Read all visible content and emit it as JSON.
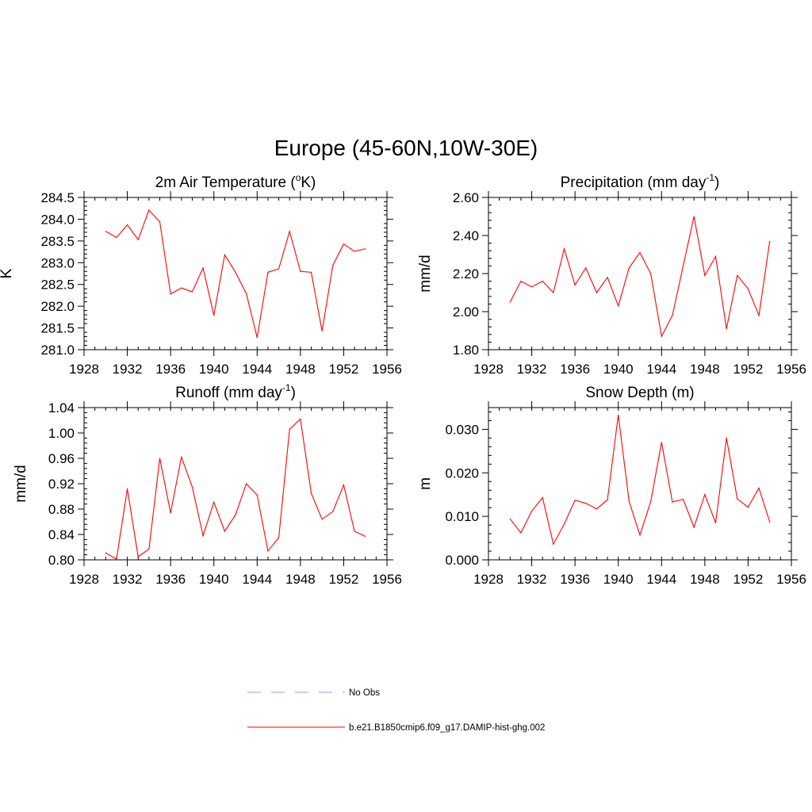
{
  "figure": {
    "title": "Europe (45-60N,10W-30E)"
  },
  "chart_data": [
    {
      "type": "line",
      "title": "2m Air Temperature (",
      "title_sup": "o",
      "title_after": "K)",
      "xlabel": "",
      "ylabel": "K",
      "xlim": [
        1928,
        1956
      ],
      "ylim": [
        281.0,
        284.5
      ],
      "xticks": [
        1928,
        1932,
        1936,
        1940,
        1944,
        1948,
        1952,
        1956
      ],
      "yticks": [
        281.0,
        281.5,
        282.0,
        282.5,
        283.0,
        283.5,
        284.0,
        284.5
      ],
      "ytick_decimals": 1,
      "x": [
        1930,
        1931,
        1932,
        1933,
        1934,
        1935,
        1936,
        1937,
        1938,
        1939,
        1940,
        1941,
        1942,
        1943,
        1944,
        1945,
        1946,
        1947,
        1948,
        1949,
        1950,
        1951,
        1952,
        1953,
        1954
      ],
      "series": [
        {
          "name": "b.e21.B1850cmip6.f09_g17.DAMIP-hist-ghg.002",
          "values": [
            283.72,
            283.58,
            283.87,
            283.53,
            284.21,
            283.94,
            282.28,
            282.42,
            282.33,
            282.88,
            281.79,
            283.18,
            282.78,
            282.29,
            281.28,
            282.78,
            282.86,
            283.72,
            282.8,
            282.78,
            281.43,
            282.94,
            283.43,
            283.26,
            283.32
          ]
        }
      ]
    },
    {
      "type": "line",
      "title": "Precipitation (mm day",
      "title_sup": "-1",
      "title_after": ")",
      "xlabel": "",
      "ylabel": "mm/d",
      "xlim": [
        1928,
        1956
      ],
      "ylim": [
        1.8,
        2.6
      ],
      "xticks": [
        1928,
        1932,
        1936,
        1940,
        1944,
        1948,
        1952,
        1956
      ],
      "yticks": [
        1.8,
        2.0,
        2.2,
        2.4,
        2.6
      ],
      "ytick_decimals": 2,
      "x": [
        1930,
        1931,
        1932,
        1933,
        1934,
        1935,
        1936,
        1937,
        1938,
        1939,
        1940,
        1941,
        1942,
        1943,
        1944,
        1945,
        1946,
        1947,
        1948,
        1949,
        1950,
        1951,
        1952,
        1953,
        1954
      ],
      "series": [
        {
          "name": "b.e21.B1850cmip6.f09_g17.DAMIP-hist-ghg.002",
          "values": [
            2.05,
            2.16,
            2.13,
            2.16,
            2.1,
            2.33,
            2.14,
            2.23,
            2.1,
            2.18,
            2.03,
            2.23,
            2.31,
            2.2,
            1.87,
            1.98,
            2.24,
            2.5,
            2.19,
            2.29,
            1.91,
            2.19,
            2.12,
            1.98,
            2.37
          ]
        }
      ]
    },
    {
      "type": "line",
      "title": "Runoff (mm day",
      "title_sup": "-1",
      "title_after": ")",
      "xlabel": "",
      "ylabel": "mm/d",
      "xlim": [
        1928,
        1956
      ],
      "ylim": [
        0.8,
        1.04
      ],
      "xticks": [
        1928,
        1932,
        1936,
        1940,
        1944,
        1948,
        1952,
        1956
      ],
      "yticks": [
        0.8,
        0.84,
        0.88,
        0.92,
        0.96,
        1.0,
        1.04
      ],
      "ytick_decimals": 2,
      "x": [
        1930,
        1931,
        1932,
        1933,
        1934,
        1935,
        1936,
        1937,
        1938,
        1939,
        1940,
        1941,
        1942,
        1943,
        1944,
        1945,
        1946,
        1947,
        1948,
        1949,
        1950,
        1951,
        1952,
        1953,
        1954
      ],
      "series": [
        {
          "name": "b.e21.B1850cmip6.f09_g17.DAMIP-hist-ghg.002",
          "values": [
            0.811,
            0.801,
            0.912,
            0.805,
            0.817,
            0.96,
            0.874,
            0.962,
            0.915,
            0.838,
            0.891,
            0.845,
            0.871,
            0.92,
            0.902,
            0.814,
            0.835,
            1.006,
            1.022,
            0.905,
            0.864,
            0.876,
            0.918,
            0.845,
            0.837
          ]
        }
      ]
    },
    {
      "type": "line",
      "title": "Snow Depth (m)",
      "title_sup": "",
      "title_after": "",
      "xlabel": "",
      "ylabel": "m",
      "xlim": [
        1928,
        1956
      ],
      "ylim": [
        0.0,
        0.035
      ],
      "xticks": [
        1928,
        1932,
        1936,
        1940,
        1944,
        1948,
        1952,
        1956
      ],
      "yticks": [
        0.0,
        0.01,
        0.02,
        0.03
      ],
      "ytick_decimals": 3,
      "x": [
        1930,
        1931,
        1932,
        1933,
        1934,
        1935,
        1936,
        1937,
        1938,
        1939,
        1940,
        1941,
        1942,
        1943,
        1944,
        1945,
        1946,
        1947,
        1948,
        1949,
        1950,
        1951,
        1952,
        1953,
        1954
      ],
      "series": [
        {
          "name": "b.e21.B1850cmip6.f09_g17.DAMIP-hist-ghg.002",
          "values": [
            0.0094,
            0.0062,
            0.0112,
            0.0143,
            0.0036,
            0.0082,
            0.0137,
            0.013,
            0.0117,
            0.0138,
            0.0333,
            0.0134,
            0.0057,
            0.0134,
            0.027,
            0.0133,
            0.0139,
            0.0075,
            0.015,
            0.0085,
            0.028,
            0.014,
            0.0121,
            0.0165,
            0.0087
          ]
        }
      ]
    }
  ],
  "legend": {
    "items": [
      {
        "label": "No Obs",
        "color": "#9999ff",
        "style": "dashed"
      },
      {
        "label": "b.e21.B1850cmip6.f09_g17.DAMIP-hist-ghg.002",
        "color": "#ff0000",
        "style": "solid"
      }
    ]
  },
  "colors": {
    "series": "#ff0000",
    "axes": "#000000"
  }
}
